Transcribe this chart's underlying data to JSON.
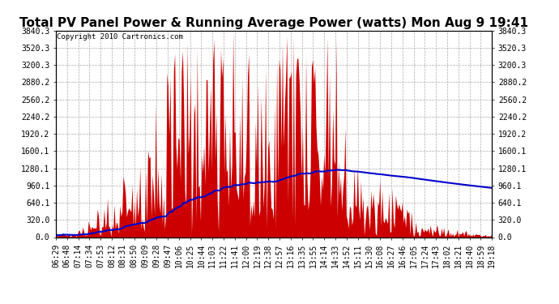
{
  "title": "Total PV Panel Power & Running Average Power (watts) Mon Aug 9 19:41",
  "copyright": "Copyright 2010 Cartronics.com",
  "ylim": [
    0,
    3840.3
  ],
  "yticks": [
    0.0,
    320.0,
    640.1,
    960.1,
    1280.1,
    1600.1,
    1920.2,
    2240.2,
    2560.2,
    2880.2,
    3200.3,
    3520.3,
    3840.3
  ],
  "ytick_labels": [
    "0.0",
    "320.0",
    "640.1",
    "960.1",
    "1280.1",
    "1600.1",
    "1920.2",
    "2240.2",
    "2560.2",
    "2880.2",
    "3200.3",
    "3520.3",
    "3840.3"
  ],
  "x_labels": [
    "06:29",
    "06:48",
    "07:14",
    "07:34",
    "07:53",
    "08:12",
    "08:31",
    "08:50",
    "09:09",
    "09:28",
    "09:47",
    "10:06",
    "10:25",
    "10:44",
    "11:03",
    "11:22",
    "11:41",
    "12:00",
    "12:19",
    "12:38",
    "12:57",
    "13:16",
    "13:35",
    "13:55",
    "14:14",
    "14:33",
    "14:52",
    "15:11",
    "15:30",
    "16:08",
    "16:27",
    "16:46",
    "17:05",
    "17:24",
    "17:43",
    "18:02",
    "18:21",
    "18:40",
    "18:59",
    "19:18"
  ],
  "bar_color": "#cc0000",
  "line_color": "#0000cc",
  "background_color": "#ffffff",
  "grid_color": "#aaaaaa",
  "title_fontsize": 11,
  "copyright_fontsize": 6.5,
  "tick_fontsize": 7
}
